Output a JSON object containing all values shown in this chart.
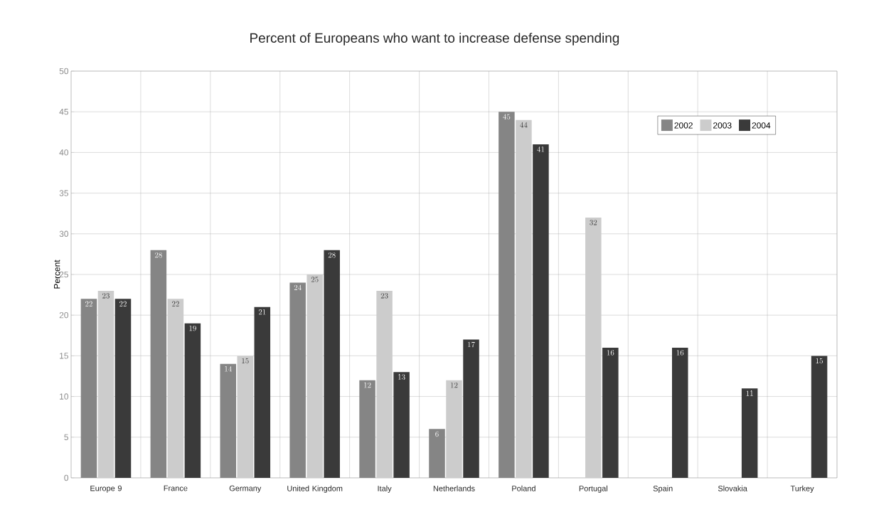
{
  "chart_data": {
    "type": "bar",
    "title": "Percent of Europeans who want to increase defense spending",
    "ylabel": "Percent",
    "categories": [
      "Europe 9",
      "France",
      "Germany",
      "United Kingdom",
      "Italy",
      "Netherlands",
      "Poland",
      "Portugal",
      "Spain",
      "Slovakia",
      "Turkey"
    ],
    "series": [
      {
        "name": "2002",
        "color": "#858585",
        "values": [
          22,
          28,
          14,
          24,
          12,
          6,
          45,
          null,
          null,
          null,
          null
        ]
      },
      {
        "name": "2003",
        "color": "#cccccc",
        "values": [
          23,
          22,
          15,
          25,
          23,
          12,
          44,
          32,
          null,
          null,
          null
        ]
      },
      {
        "name": "2004",
        "color": "#3a3a3a",
        "values": [
          22,
          19,
          21,
          28,
          13,
          17,
          41,
          16,
          16,
          11,
          15
        ]
      }
    ],
    "ylim": [
      0,
      50
    ],
    "yticks": [
      0,
      5,
      10,
      15,
      20,
      25,
      30,
      35,
      40,
      45,
      50
    ],
    "grid": true,
    "legend": "top right",
    "data_labels": true
  }
}
